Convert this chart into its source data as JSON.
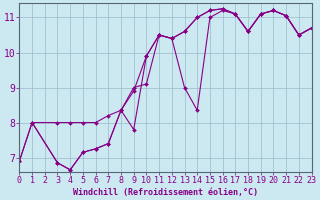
{
  "xlabel": "Windchill (Refroidissement éolien,°C)",
  "bg_color": "#cce8f0",
  "line_color": "#880088",
  "grid_color": "#99bbcc",
  "spine_color": "#556677",
  "x_ticks": [
    0,
    1,
    2,
    3,
    4,
    5,
    6,
    7,
    8,
    9,
    10,
    11,
    12,
    13,
    14,
    15,
    16,
    17,
    18,
    19,
    20,
    21,
    22,
    23
  ],
  "y_ticks": [
    7,
    8,
    9,
    10,
    11
  ],
  "xlim": [
    0,
    23
  ],
  "ylim": [
    6.6,
    11.4
  ],
  "series1_x": [
    0,
    1,
    3,
    4,
    5,
    6,
    7,
    8,
    9,
    10,
    11,
    12,
    13,
    14,
    15,
    16,
    17,
    18,
    19,
    20,
    21,
    22,
    23
  ],
  "series1_y": [
    6.9,
    8.0,
    6.85,
    6.65,
    7.15,
    7.25,
    7.4,
    8.35,
    7.8,
    9.9,
    10.5,
    10.4,
    9.0,
    8.35,
    11.0,
    11.2,
    11.1,
    10.6,
    11.1,
    11.2,
    11.05,
    10.5,
    10.7
  ],
  "series2_x": [
    1,
    3,
    4,
    5,
    6,
    7,
    8,
    9,
    10,
    11,
    12,
    13,
    14,
    15,
    16,
    17,
    18,
    19,
    20,
    21,
    22,
    23
  ],
  "series2_y": [
    8.0,
    8.0,
    8.0,
    8.0,
    8.0,
    8.2,
    8.35,
    9.0,
    9.1,
    10.5,
    10.4,
    10.6,
    11.0,
    11.2,
    11.25,
    11.1,
    10.6,
    11.1,
    11.2,
    11.05,
    10.5,
    10.7
  ],
  "series3_x": [
    0,
    1,
    3,
    4,
    5,
    6,
    7,
    8,
    9,
    10,
    11,
    12,
    13,
    14,
    15,
    16,
    17,
    18,
    19,
    20,
    21,
    22,
    23
  ],
  "series3_y": [
    6.9,
    8.0,
    6.85,
    6.65,
    7.15,
    7.25,
    7.4,
    8.35,
    8.9,
    9.9,
    10.5,
    10.4,
    10.6,
    11.0,
    11.2,
    11.25,
    11.1,
    10.6,
    11.1,
    11.2,
    11.05,
    10.5,
    10.7
  ],
  "tick_fontsize": 6,
  "label_fontsize": 6
}
